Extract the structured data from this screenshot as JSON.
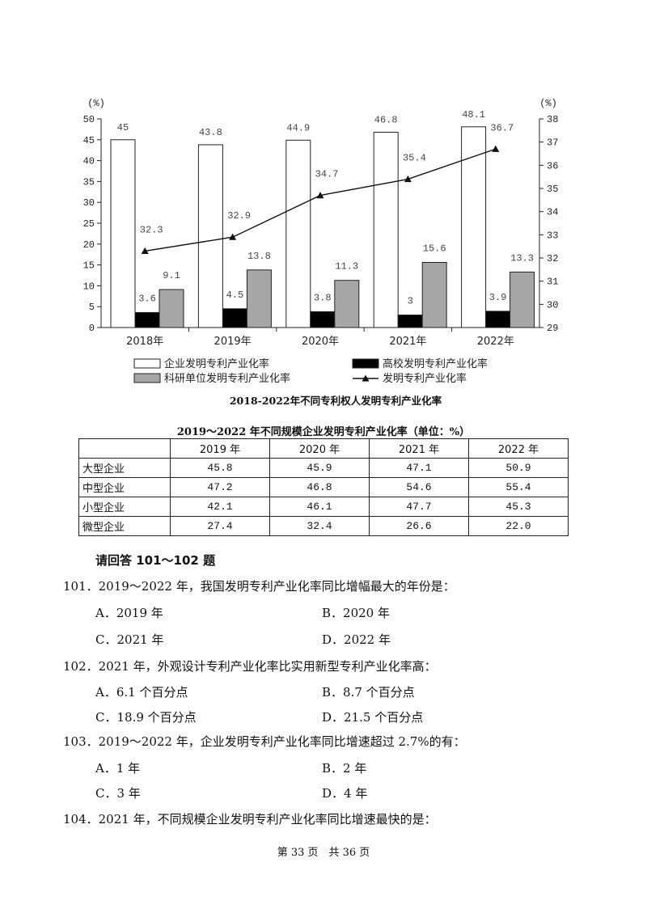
{
  "chart_data": {
    "type": "bar+line",
    "title": "2018-2022年不同专利权人发明专利产业化率",
    "y_unit_left": "(%)",
    "y_unit_right": "(%)",
    "ylim_left": [
      0,
      50
    ],
    "ylim_right": [
      29,
      38
    ],
    "yticks_left": [
      "0",
      "5",
      "10",
      "15",
      "20",
      "25",
      "30",
      "35",
      "40",
      "45",
      "50"
    ],
    "yticks_right": [
      "29",
      "30",
      "31",
      "32",
      "33",
      "34",
      "35",
      "36",
      "37",
      "38"
    ],
    "categories": [
      "2018年",
      "2019年",
      "2020年",
      "2021年",
      "2022年"
    ],
    "bar_series": [
      {
        "name": "企业发明专利产业化率",
        "color": "#ffffff",
        "values": [
          45,
          43.8,
          44.9,
          46.8,
          48.1
        ],
        "labels": [
          "45",
          "43.8",
          "44.9",
          "46.8",
          "48.1"
        ]
      },
      {
        "name": "高校发明专利产业化率",
        "color": "#000000",
        "values": [
          3.6,
          4.5,
          3.8,
          3,
          3.9
        ],
        "labels": [
          "3.6",
          "4.5",
          "3.8",
          "3",
          "3.9"
        ]
      },
      {
        "name": "科研单位发明专利产业化率",
        "color": "#a6a6a6",
        "values": [
          9.1,
          13.8,
          11.3,
          15.6,
          13.3
        ],
        "labels": [
          "9.1",
          "13.8",
          "11.3",
          "15.6",
          "13.3"
        ]
      }
    ],
    "line_series": {
      "name": "发明专利产业化率",
      "axis": "right",
      "values": [
        32.3,
        32.9,
        34.7,
        35.4,
        36.7
      ],
      "labels": [
        "32.3",
        "32.9",
        "34.7",
        "35.4",
        "36.7"
      ]
    },
    "legend_position": "bottom"
  },
  "table": {
    "title": "2019～2022 年不同规模企业发明专利产业化率（单位：%）",
    "headers": [
      "",
      "2019 年",
      "2020 年",
      "2021 年",
      "2022 年"
    ],
    "rows": [
      {
        "label": "大型企业",
        "values": [
          "45.8",
          "45.9",
          "47.1",
          "50.9"
        ]
      },
      {
        "label": "中型企业",
        "values": [
          "47.2",
          "46.8",
          "54.6",
          "55.4"
        ]
      },
      {
        "label": "小型企业",
        "values": [
          "42.1",
          "46.1",
          "47.7",
          "45.3"
        ]
      },
      {
        "label": "微型企业",
        "values": [
          "27.4",
          "32.4",
          "26.6",
          "22.0"
        ]
      }
    ]
  },
  "instruction": "请回答 101～102 题",
  "questions": [
    {
      "stem": "101．2019～2022 年，我国发明专利产业化率同比增幅最大的年份是：",
      "options": [
        "A．2019 年",
        "B．2020 年",
        "C．2021 年",
        "D．2022 年"
      ]
    },
    {
      "stem": "102．2021 年，外观设计专利产业化率比实用新型专利产业化率高：",
      "options": [
        "A．6.1 个百分点",
        "B．8.7 个百分点",
        "C．18.9 个百分点",
        "D．21.5 个百分点"
      ]
    },
    {
      "stem": "103．2019～2022 年，企业发明专利产业化率同比增速超过 2.7%的有：",
      "options": [
        "A．1 年",
        "B．2 年",
        "C．3 年",
        "D．4 年"
      ]
    },
    {
      "stem": "104．2021 年，不同规模企业发明专利产业化率同比增速最快的是：",
      "options": []
    }
  ],
  "footer": "第 33 页　共 36 页"
}
